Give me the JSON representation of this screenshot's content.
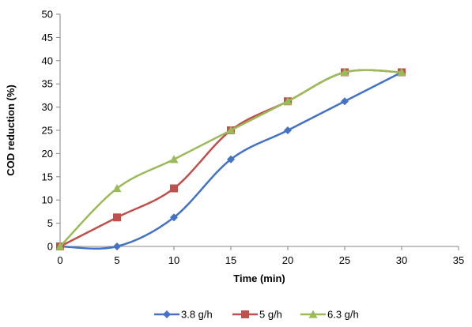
{
  "chart_data": {
    "type": "line",
    "title": "",
    "xlabel": "Time (min)",
    "ylabel": "COD reduction (%)",
    "xlim": [
      0,
      35
    ],
    "ylim": [
      0,
      50
    ],
    "x_ticks": [
      0,
      5,
      10,
      15,
      20,
      25,
      30,
      35
    ],
    "y_ticks": [
      0,
      5,
      10,
      15,
      20,
      25,
      30,
      35,
      40,
      45,
      50
    ],
    "grid": false,
    "legend_position": "bottom",
    "smooth": true,
    "series": [
      {
        "name": "3.8 g/h",
        "color": "#4472C4",
        "marker": "diamond",
        "x": [
          0,
          5,
          10,
          15,
          20,
          25,
          30
        ],
        "y": [
          0,
          0,
          6.25,
          18.75,
          25,
          31.25,
          37.5
        ]
      },
      {
        "name": "5 g/h",
        "color": "#C0504D",
        "marker": "square",
        "x": [
          0,
          5,
          10,
          15,
          20,
          25,
          30
        ],
        "y": [
          0,
          6.25,
          12.5,
          25,
          31.25,
          37.5,
          37.5
        ]
      },
      {
        "name": "6.3 g/h",
        "color": "#9BBB59",
        "marker": "triangle",
        "x": [
          0,
          5,
          10,
          15,
          20,
          25,
          30
        ],
        "y": [
          0,
          12.5,
          18.75,
          25,
          31.25,
          37.5,
          37.5
        ]
      }
    ]
  }
}
